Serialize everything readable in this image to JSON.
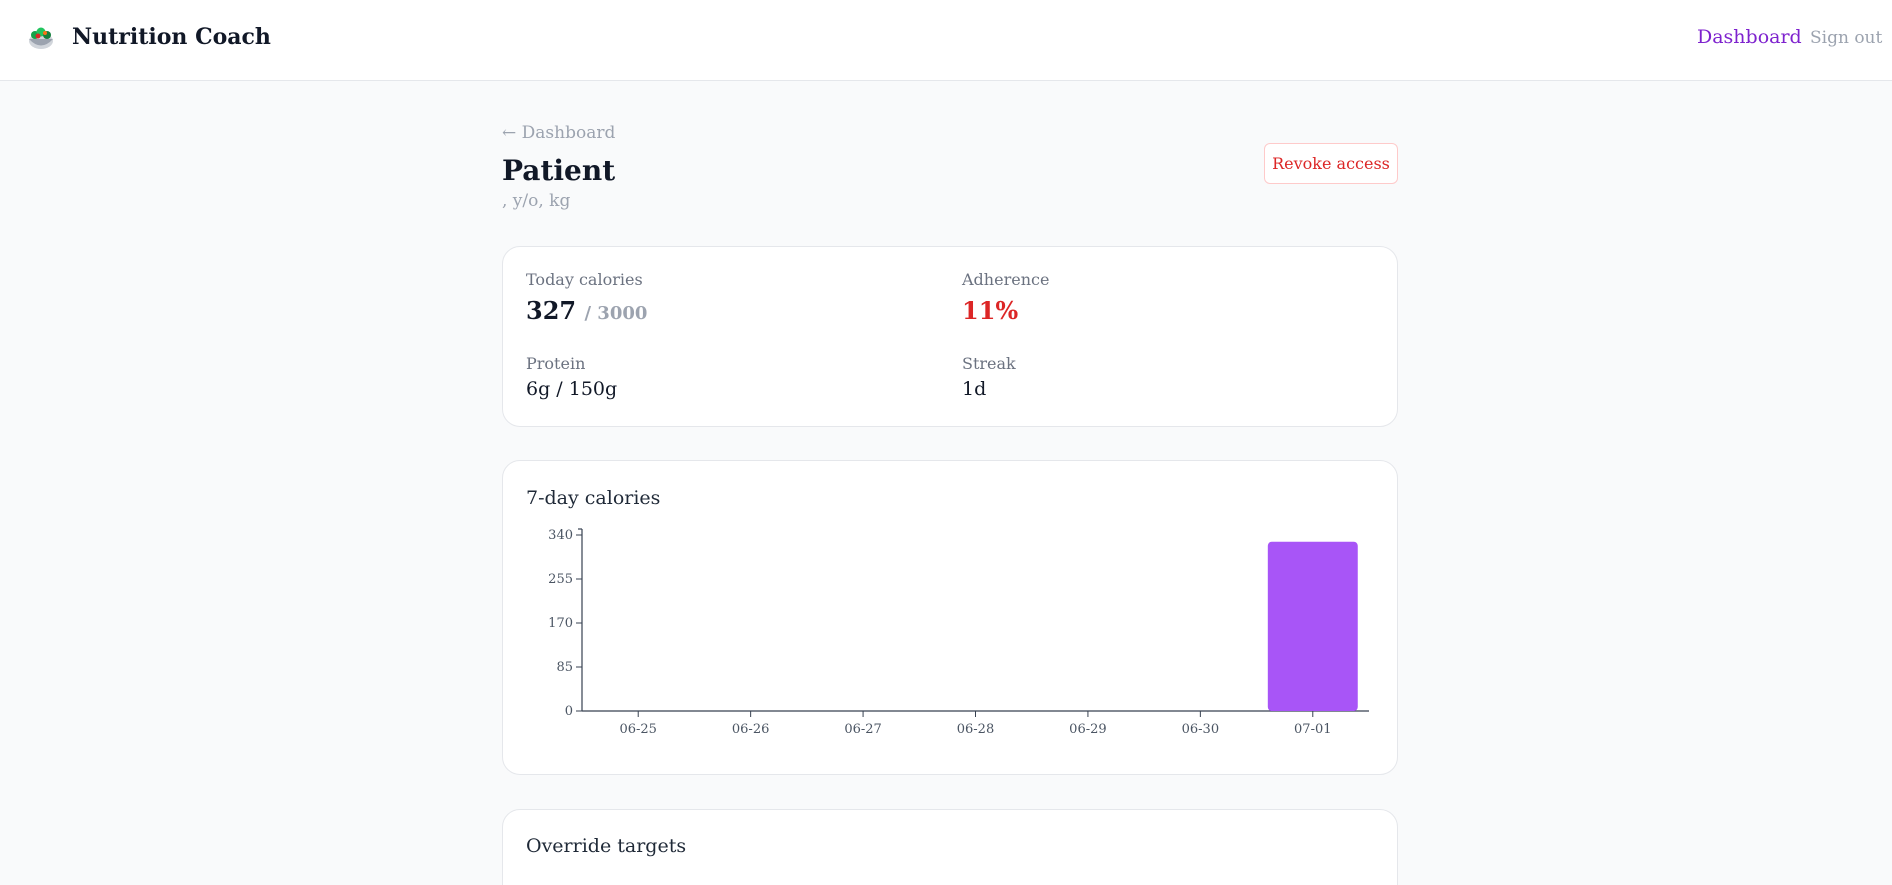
{
  "header": {
    "brand": "Nutrition Coach",
    "logo_icon": "salad-bowl-icon",
    "nav_dashboard": "Dashboard",
    "nav_signout": "Sign out"
  },
  "page": {
    "back_link": "← Dashboard",
    "title": "Patient",
    "subtitle": ", y/o, kg",
    "revoke_button": "Revoke access"
  },
  "stats": {
    "today_calories_label": "Today calories",
    "today_calories_value": "327",
    "today_calories_goal": "/ 3000",
    "adherence_label": "Adherence",
    "adherence_value": "11%",
    "protein_label": "Protein",
    "protein_value": "6g / 150g",
    "streak_label": "Streak",
    "streak_value": "1d"
  },
  "chart_card": {
    "title": "7-day calories"
  },
  "override": {
    "title": "Override targets"
  },
  "colors": {
    "accent": "#7e22ce",
    "bar": "#a855f7",
    "danger": "#dc2626"
  },
  "chart_data": {
    "type": "bar",
    "categories": [
      "06-25",
      "06-26",
      "06-27",
      "06-28",
      "06-29",
      "06-30",
      "07-01"
    ],
    "values": [
      0,
      0,
      0,
      0,
      0,
      0,
      327
    ],
    "ylim": [
      0,
      340
    ],
    "yticks": [
      0,
      85,
      170,
      255,
      340
    ],
    "grid": false
  }
}
